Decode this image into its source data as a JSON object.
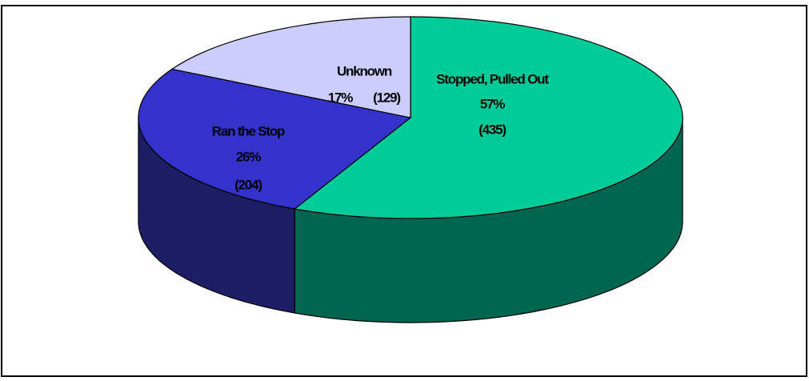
{
  "chart_data": {
    "type": "pie3d",
    "categories": [
      "Stopped, Pulled Out",
      "Ran the Stop",
      "Unknown"
    ],
    "values": [
      57,
      26,
      17
    ],
    "value_labels": [
      "57%",
      "26%",
      "17%"
    ],
    "counts": [
      435,
      204,
      129
    ],
    "count_labels": [
      "(435)",
      "(204)",
      "(129)"
    ],
    "colors": [
      "#00cc99",
      "#3333cc",
      "#ccccff"
    ],
    "side_colors": [
      "#006650",
      "#1e1e66",
      "#8c8cb0"
    ]
  }
}
